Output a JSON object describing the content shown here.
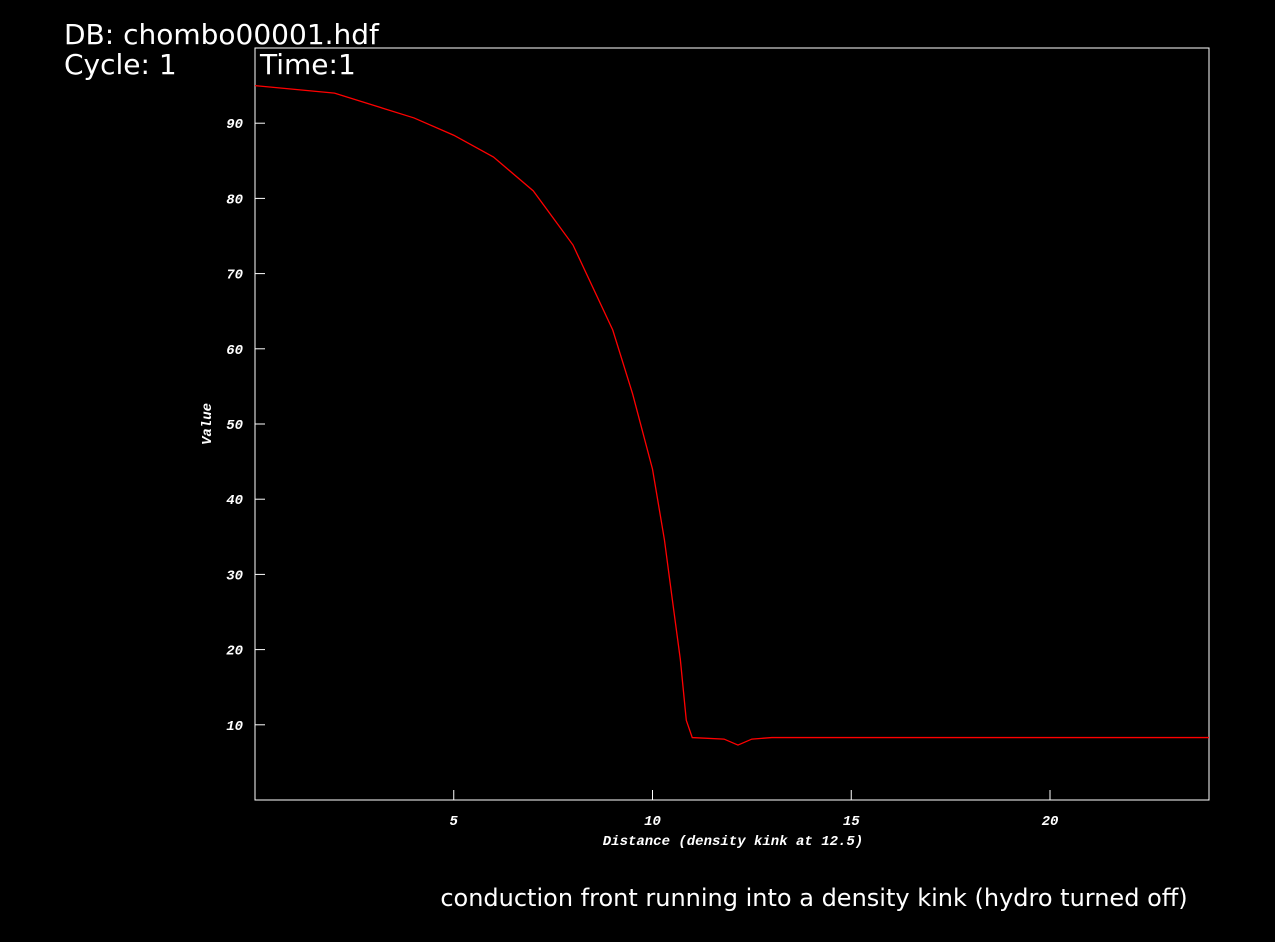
{
  "chart_data": {
    "type": "line",
    "db_label": "DB: chombo00001.hdf",
    "cycle_label": "Cycle: 1",
    "time_label": "Time:1",
    "xlabel": "Distance (density kink at 12.5)",
    "ylabel": "Value",
    "caption": "conduction front running into a density kink (hydro turned off)",
    "xlim": [
      0,
      24
    ],
    "ylim": [
      0,
      100
    ],
    "xticks": [
      5,
      10,
      15,
      20
    ],
    "yticks": [
      10,
      20,
      30,
      40,
      50,
      60,
      70,
      80,
      90
    ],
    "x": [
      0,
      2,
      4,
      5,
      6,
      7,
      8,
      9,
      9.5,
      10,
      10.3,
      10.5,
      10.7,
      10.85,
      11,
      11.8,
      12.15,
      12.5,
      13,
      24
    ],
    "series": [
      {
        "color": "#ff0000",
        "values": [
          95,
          94,
          90.7,
          88.4,
          85.5,
          81,
          73.8,
          62.5,
          54,
          44,
          34.6,
          26.6,
          18.7,
          10.6,
          8.3,
          8.1,
          7.3,
          8.1,
          8.3,
          8.3
        ]
      }
    ]
  }
}
